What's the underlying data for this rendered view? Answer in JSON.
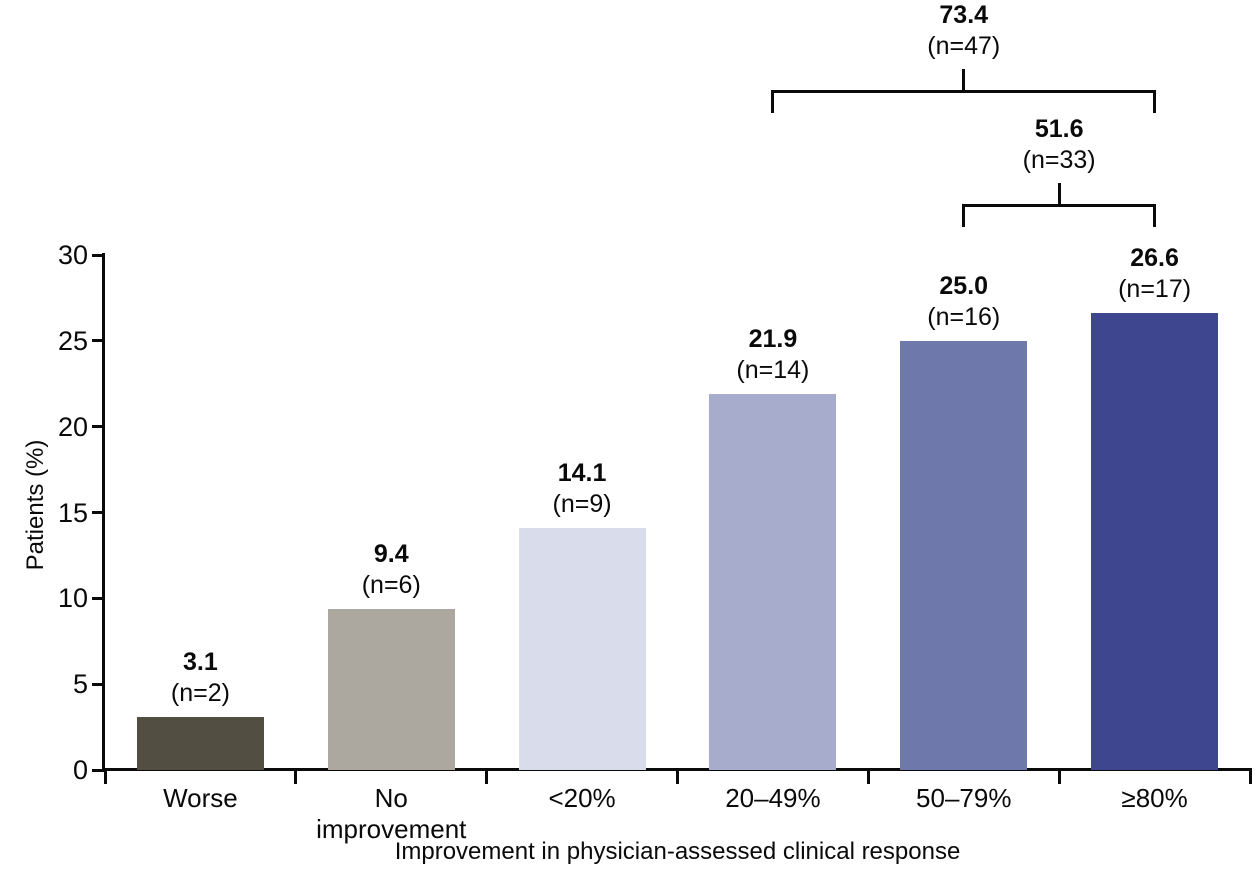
{
  "chart_data": {
    "type": "bar",
    "title": "",
    "categories": [
      "Worse",
      "No improvement",
      "<20%",
      "20–49%",
      "50–79%",
      "≥80%"
    ],
    "values": [
      3.1,
      9.4,
      14.1,
      21.9,
      25.0,
      26.6
    ],
    "bar_labels": [
      {
        "value": "3.1",
        "n": "(n=2)"
      },
      {
        "value": "9.4",
        "n": "(n=6)"
      },
      {
        "value": "14.1",
        "n": "(n=9)"
      },
      {
        "value": "21.9",
        "n": "(n=14)"
      },
      {
        "value": "25.0",
        "n": "(n=16)"
      },
      {
        "value": "26.6",
        "n": "(n=17)"
      }
    ],
    "bar_colors": [
      "#524e42",
      "#aca79f",
      "#d9dcea",
      "#a8accc",
      "#6f78ab",
      "#3e468f"
    ],
    "xlabel": "Improvement in physician-assessed clinical response",
    "ylabel": "Patients (%)",
    "ylim": [
      0,
      30
    ],
    "yticks": [
      0,
      5,
      10,
      15,
      20,
      25,
      30
    ],
    "grid": false,
    "legend": "none",
    "brackets": [
      {
        "value": "73.4",
        "n": "(n=47)",
        "from_index": 3,
        "to_index": 5
      },
      {
        "value": "51.6",
        "n": "(n=33)",
        "from_index": 4,
        "to_index": 5
      }
    ]
  }
}
